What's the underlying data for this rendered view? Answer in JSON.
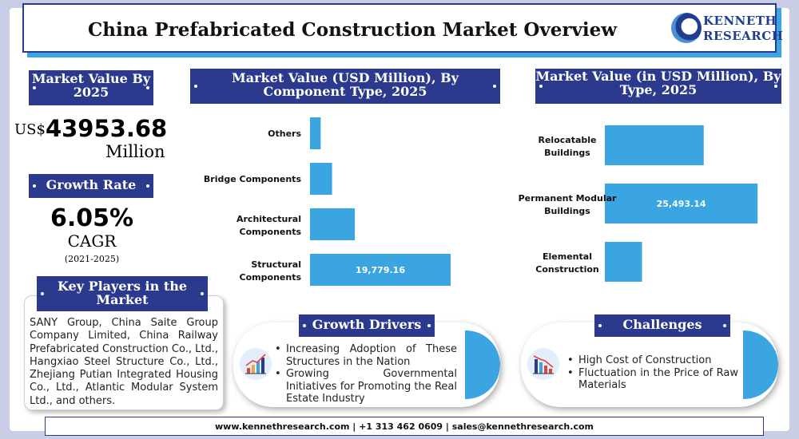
{
  "header": {
    "title": "China Prefabricated Construction Market Overview"
  },
  "logo": {
    "line1": "KENNETH",
    "line2": "RESEARCH",
    "icon": "kenneth-research-logo"
  },
  "market_value": {
    "badge": "Market Value By 2025",
    "currency": "US$",
    "value": "43953.68",
    "unit": "Million"
  },
  "growth": {
    "badge": "Growth Rate",
    "rate": "6.05%",
    "label": "CAGR",
    "period": "(2021-2025)"
  },
  "key_players": {
    "badge": "Key Players in the Market",
    "text": "SANY Group, China Saite Group Company Limited, China Railway Prefabricated Construction Co., Ltd., Hangxiao Steel Structure Co., Ltd., Zhejiang Putian Integrated Housing Co., Ltd., Atlantic Modular System Ltd., and others."
  },
  "chart_data": [
    {
      "type": "bar",
      "orientation": "horizontal",
      "title": "Market Value (USD Million), By Component Type, 2025",
      "categories": [
        "Others",
        "Bridge Components",
        "Architectural Components",
        "Structural Components"
      ],
      "values": [
        1500,
        3100,
        6300,
        19779.16
      ],
      "data_labels": [
        "",
        "",
        "",
        "19,779.16"
      ],
      "xlim": [
        0,
        20000
      ],
      "color": "#3aa5e0",
      "grid": false
    },
    {
      "type": "bar",
      "orientation": "horizontal",
      "title": "Market Value (in USD Million), By Type, 2025",
      "categories": [
        "Relocatable Buildings",
        "Permanent Modular Buildings",
        "Elemental Construction"
      ],
      "values": [
        16500,
        25493.14,
        6200
      ],
      "data_labels": [
        "",
        "25,493.14",
        ""
      ],
      "xlim": [
        0,
        26000
      ],
      "color": "#3aa5e0",
      "grid": false
    }
  ],
  "growth_drivers": {
    "badge": "Growth Drivers",
    "icon": "bar-chart-growth-icon",
    "items": [
      "Increasing Adoption of These Structures in the Nation",
      "Growing Governmental Initiatives for Promoting the Real Estate Industry"
    ]
  },
  "challenges": {
    "badge": "Challenges",
    "icon": "bar-chart-decline-icon",
    "items": [
      "High Cost of Construction",
      "Fluctuation in the Price of Raw Materials"
    ]
  },
  "footer": {
    "text": "www.kennethresearch.com | +1 313 462 0609 | sales@kennethresearch.com"
  },
  "colors": {
    "navy": "#2b3a8c",
    "accent": "#3aa5e0",
    "frame": "#c9cde6"
  }
}
